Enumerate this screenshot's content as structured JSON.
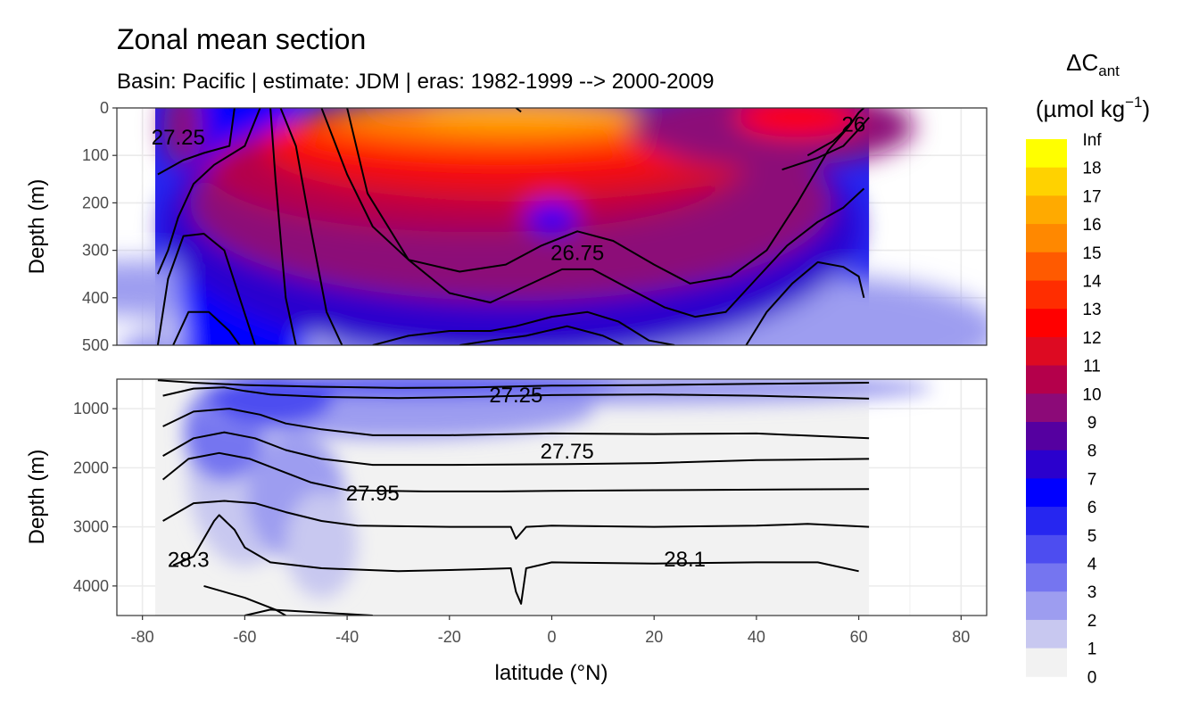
{
  "chart_data": {
    "type": "heatmap",
    "title": "Zonal mean section",
    "subtitle": "Basin: Pacific | estimate: JDM  | eras: 1982-1999 --> 2000-2009",
    "xlabel": "latitude (°N)",
    "xlim": [
      -85,
      85
    ],
    "x_ticks": [
      "-80",
      "-60",
      "-40",
      "-20",
      "0",
      "20",
      "40",
      "60",
      "80"
    ],
    "panels": [
      {
        "name": "upper",
        "ylabel": "Depth (m)",
        "ylim": [
          0,
          500
        ],
        "y_ticks": [
          "0",
          "100",
          "200",
          "300",
          "400",
          "500"
        ],
        "contour_labels": [
          {
            "text": "27.25",
            "lat": -73,
            "depth": 62
          },
          {
            "text": "26",
            "lat": 59,
            "depth": 35
          },
          {
            "text": "26.75",
            "lat": 5,
            "depth": 305
          }
        ]
      },
      {
        "name": "lower",
        "ylabel": "Depth (m)",
        "ylim": [
          500,
          4500
        ],
        "y_ticks": [
          "1000",
          "2000",
          "3000",
          "4000"
        ],
        "contour_labels": [
          {
            "text": "27.25",
            "lat": -7,
            "depth": 770
          },
          {
            "text": "27.75",
            "lat": 3,
            "depth": 1720
          },
          {
            "text": "27.95",
            "lat": -35,
            "depth": 2430
          },
          {
            "text": "28.3",
            "lat": -71,
            "depth": 3560
          },
          {
            "text": "28.1",
            "lat": 26,
            "depth": 3550
          }
        ]
      }
    ],
    "legend": {
      "title_main": "ΔC",
      "title_sub": "ant",
      "unit_main": "(µmol kg",
      "unit_sup": "−1",
      "unit_close": ")",
      "labels": [
        "Inf",
        "18",
        "17",
        "16",
        "15",
        "14",
        "13",
        "12",
        "11",
        "10",
        "9",
        "8",
        "7",
        "6",
        "5",
        "4",
        "3",
        "2",
        "1",
        "0"
      ],
      "colors": [
        "#ffff00",
        "#ffd200",
        "#ffaa00",
        "#ff8800",
        "#ff5a00",
        "#ff2d00",
        "#ff0000",
        "#dd0a22",
        "#b4004b",
        "#8c0a78",
        "#5500a0",
        "#2b00cd",
        "#0000ff",
        "#2626f0",
        "#4d4df0",
        "#7575f0",
        "#9d9df0",
        "#c8c8f0",
        "#f2f2f2"
      ]
    }
  }
}
